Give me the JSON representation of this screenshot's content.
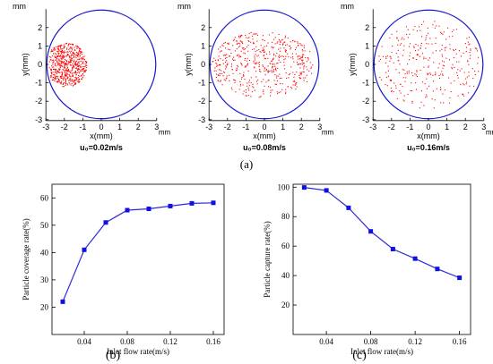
{
  "chart_data": [
    {
      "type": "scatter",
      "panel": "top-left",
      "unit_label": "mm",
      "xlabel": "x(mm)",
      "ylabel": "y(mm)",
      "xlim": [
        -3,
        3
      ],
      "ylim": [
        -3,
        3
      ],
      "xticks": [
        "-3",
        "-2",
        "-1",
        "0",
        "1",
        "2",
        "3"
      ],
      "yticks": [
        "2",
        "1",
        "0",
        "-1",
        "-2",
        "-3"
      ],
      "boundary_circle_radius": 2.95,
      "caption": "u₀=0.02m/s",
      "series": [
        {
          "values_description": "dense particle cloud",
          "x_range": [
            -3.0,
            -0.8
          ],
          "y_range": [
            -1.2,
            1.2
          ],
          "count": 600
        }
      ]
    },
    {
      "type": "scatter",
      "panel": "top-middle",
      "unit_label": "mm",
      "xlabel": "x(mm)",
      "ylabel": "y(mm)",
      "xlim": [
        -3,
        3
      ],
      "ylim": [
        -3,
        3
      ],
      "xticks": [
        "-3",
        "-2",
        "-1",
        "0",
        "1",
        "2",
        "3"
      ],
      "yticks": [
        "2",
        "1",
        "0",
        "-1",
        "-2",
        "-3"
      ],
      "boundary_circle_radius": 2.95,
      "caption": "u₀=0.08m/s",
      "series": [
        {
          "values_description": "particle cloud",
          "x_range": [
            -2.9,
            2.7
          ],
          "y_range": [
            -1.8,
            1.8
          ],
          "count": 520
        }
      ]
    },
    {
      "type": "scatter",
      "panel": "top-right",
      "unit_label": "mm",
      "xlabel": "x(mm)",
      "ylabel": "y(mm)",
      "xlim": [
        -3,
        3
      ],
      "ylim": [
        -3,
        3
      ],
      "xticks": [
        "-3",
        "-2",
        "-1",
        "0",
        "1",
        "2",
        "3"
      ],
      "yticks": [
        "2",
        "1",
        "0",
        "-1",
        "-2",
        "-3"
      ],
      "boundary_circle_radius": 2.95,
      "caption": "u₀=0.16m/s",
      "series": [
        {
          "values_description": "sparse particle cloud",
          "x_range": [
            -2.8,
            2.8
          ],
          "y_range": [
            -2.4,
            2.4
          ],
          "count": 300
        }
      ]
    },
    {
      "type": "line",
      "panel": "bottom-left",
      "xlabel": "Inlet flow rate(m/s)",
      "ylabel": "Particle coverage rate(%)",
      "xlim": [
        0.01,
        0.17
      ],
      "ylim": [
        10,
        65
      ],
      "xticks": [
        "0.04",
        "0.08",
        "0.12",
        "0.16"
      ],
      "yticks": [
        "20",
        "30",
        "40",
        "50",
        "60"
      ],
      "x": [
        0.02,
        0.04,
        0.06,
        0.08,
        0.1,
        0.12,
        0.14,
        0.16
      ],
      "series": [
        {
          "values": [
            22,
            41,
            51,
            55.5,
            56,
            57,
            58,
            58.2
          ]
        }
      ]
    },
    {
      "type": "line",
      "panel": "bottom-right",
      "xlabel": "Inlet flow rate(m/s)",
      "ylabel": "Particle capture rate(%)",
      "xlim": [
        0.01,
        0.17
      ],
      "ylim": [
        0,
        102
      ],
      "xticks": [
        "0.04",
        "0.08",
        "0.12",
        "0.16"
      ],
      "yticks": [
        "20",
        "40",
        "60",
        "80",
        "100"
      ],
      "x": [
        0.02,
        0.04,
        0.06,
        0.08,
        0.1,
        0.12,
        0.14,
        0.16
      ],
      "series": [
        {
          "values": [
            99.8,
            97.8,
            86,
            70,
            58,
            51.5,
            44.5,
            38.5
          ]
        }
      ]
    }
  ],
  "labels": {
    "a": "(a)",
    "b": "(b)",
    "c": "(c)"
  },
  "colors": {
    "particles": "#ff0000",
    "circle": "#1a1acd",
    "line": "#2a2ad8",
    "marker": "#1010e0",
    "axis": "#000000"
  }
}
